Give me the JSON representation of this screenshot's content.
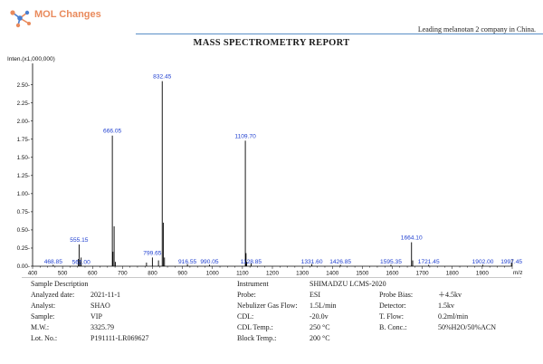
{
  "header": {
    "logo_text": "MOL Changes",
    "tagline": "Leading melanotan 2 company in China.",
    "title": "MASS SPECTROMETRY REPORT"
  },
  "colors": {
    "logo_orange": "#e98a5c",
    "logo_blue": "#4a7fd0",
    "header_rule": "#5a8fc7",
    "peak_label": "#1f3fd0",
    "spectrum": "#000000"
  },
  "chart_data": {
    "type": "bar",
    "title": "",
    "ylabel": "Inten.(x1,000,000)",
    "xlabel": "m/z",
    "xlim": [
      400,
      2000
    ],
    "ylim": [
      0,
      2.72
    ],
    "xticks": [
      400,
      500,
      600,
      700,
      800,
      900,
      1000,
      1100,
      1200,
      1300,
      1400,
      1500,
      1600,
      1700,
      1800,
      1900
    ],
    "yticks": [
      0.0,
      0.25,
      0.5,
      0.75,
      1.0,
      1.25,
      1.5,
      1.75,
      2.0,
      2.25,
      2.5
    ],
    "ytick_labels": [
      "0.00-",
      "0.25-",
      "0.50-",
      "0.75-",
      "1.00-",
      "1.25-",
      "1.50-",
      "1.75-",
      "2.00-",
      "2.25-",
      "2.50-"
    ],
    "grid": false,
    "labeled_peaks": [
      {
        "mz": 468.85,
        "label": "468.85",
        "intensity": 0.02
      },
      {
        "mz": 555.15,
        "label": "555.15",
        "intensity": 0.3
      },
      {
        "mz": 562.0,
        "label": "562.00",
        "intensity": 0.12
      },
      {
        "mz": 666.05,
        "label": "666.05",
        "intensity": 1.8
      },
      {
        "mz": 799.65,
        "label": "799.65",
        "intensity": 0.12
      },
      {
        "mz": 832.45,
        "label": "832.45",
        "intensity": 2.55
      },
      {
        "mz": 916.55,
        "label": "916.55",
        "intensity": 0.03
      },
      {
        "mz": 990.05,
        "label": "990.05",
        "intensity": 0.02
      },
      {
        "mz": 1109.7,
        "label": "1109.70",
        "intensity": 1.73
      },
      {
        "mz": 1128.85,
        "label": "1128.85",
        "intensity": 0.04
      },
      {
        "mz": 1331.6,
        "label": "1331.60",
        "intensity": 0.03
      },
      {
        "mz": 1426.85,
        "label": "1426.85",
        "intensity": 0.02
      },
      {
        "mz": 1595.35,
        "label": "1595.35",
        "intensity": 0.02
      },
      {
        "mz": 1664.1,
        "label": "1664.10",
        "intensity": 0.33
      },
      {
        "mz": 1721.45,
        "label": "1721.45",
        "intensity": 0.02
      },
      {
        "mz": 1902.0,
        "label": "1902.00",
        "intensity": 0.02
      },
      {
        "mz": 1997.45,
        "label": "1997.45",
        "intensity": 0.05
      }
    ],
    "minor_peaks": [
      {
        "mz": 553,
        "intensity": 0.1
      },
      {
        "mz": 560,
        "intensity": 0.08
      },
      {
        "mz": 672,
        "intensity": 0.55
      },
      {
        "mz": 668,
        "intensity": 0.2
      },
      {
        "mz": 676,
        "intensity": 0.06
      },
      {
        "mz": 780,
        "intensity": 0.05
      },
      {
        "mz": 820,
        "intensity": 0.08
      },
      {
        "mz": 836,
        "intensity": 0.6
      },
      {
        "mz": 840,
        "intensity": 0.12
      },
      {
        "mz": 1112,
        "intensity": 0.18
      },
      {
        "mz": 1114,
        "intensity": 0.06
      },
      {
        "mz": 1668,
        "intensity": 0.08
      }
    ]
  },
  "sample": {
    "heading": "Sample Description",
    "rows": [
      {
        "key": "Analyzed date:",
        "value": "2021-11-1"
      },
      {
        "key": "Analyst:",
        "value": "SHAO"
      },
      {
        "key": "Sample:",
        "value": "VIP"
      },
      {
        "key": "M.W.:",
        "value": "3325.79"
      },
      {
        "key": "Lot. No.:",
        "value": "P191111-LR069627"
      }
    ]
  },
  "instrument": {
    "heading": "Instrument",
    "model": "SHIMADZU LCMS-2020",
    "rows": [
      {
        "key": "Probe:",
        "value": "ESI",
        "key2": "Probe Bias:",
        "value2": "＋4.5kv"
      },
      {
        "key": "Nebulizer Gas Flow:",
        "value": "1.5L/min",
        "key2": "Detector:",
        "value2": "1.5kv"
      },
      {
        "key": "CDL:",
        "value": "-20.0v",
        "key2": "T. Flow:",
        "value2": "0.2ml/min"
      },
      {
        "key": "CDL Temp.:",
        "value": "250 °C",
        "key2": "B. Conc.:",
        "value2": "50%H2O/50%ACN"
      },
      {
        "key": "Block Temp.:",
        "value": "200 °C",
        "key2": "",
        "value2": ""
      }
    ]
  }
}
